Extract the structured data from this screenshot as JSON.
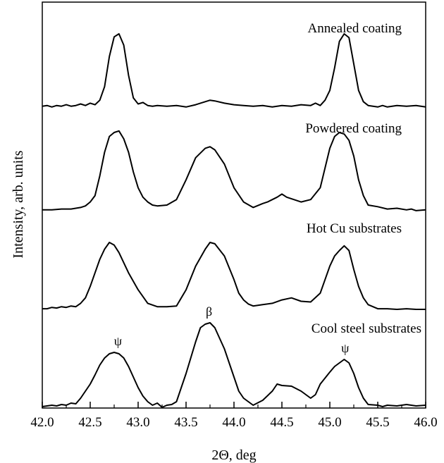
{
  "chart_data": {
    "type": "line",
    "xlabel": "2Θ, deg",
    "ylabel": "Intensity, arb. units",
    "xlim": [
      42.0,
      46.0
    ],
    "x_ticks": [
      "42.0",
      "42.5",
      "43.0",
      "43.5",
      "44.0",
      "44.5",
      "45.0",
      "45.5",
      "46.0"
    ],
    "grid": false,
    "line_color": "#000000",
    "series": [
      {
        "name": "Annealed coating",
        "points": [
          [
            42.0,
            0.04
          ],
          [
            42.05,
            0.05
          ],
          [
            42.1,
            0.03
          ],
          [
            42.15,
            0.05
          ],
          [
            42.2,
            0.04
          ],
          [
            42.25,
            0.06
          ],
          [
            42.3,
            0.04
          ],
          [
            42.35,
            0.05
          ],
          [
            42.4,
            0.07
          ],
          [
            42.45,
            0.05
          ],
          [
            42.5,
            0.08
          ],
          [
            42.55,
            0.06
          ],
          [
            42.6,
            0.12
          ],
          [
            42.65,
            0.3
          ],
          [
            42.7,
            0.7
          ],
          [
            42.75,
            0.96
          ],
          [
            42.8,
            1.0
          ],
          [
            42.85,
            0.85
          ],
          [
            42.9,
            0.45
          ],
          [
            42.95,
            0.15
          ],
          [
            43.0,
            0.07
          ],
          [
            43.05,
            0.09
          ],
          [
            43.1,
            0.05
          ],
          [
            43.15,
            0.04
          ],
          [
            43.2,
            0.05
          ],
          [
            43.3,
            0.04
          ],
          [
            43.4,
            0.05
          ],
          [
            43.5,
            0.03
          ],
          [
            43.6,
            0.06
          ],
          [
            43.7,
            0.1
          ],
          [
            43.75,
            0.12
          ],
          [
            43.8,
            0.11
          ],
          [
            43.9,
            0.08
          ],
          [
            44.0,
            0.06
          ],
          [
            44.1,
            0.05
          ],
          [
            44.2,
            0.04
          ],
          [
            44.3,
            0.05
          ],
          [
            44.4,
            0.03
          ],
          [
            44.5,
            0.05
          ],
          [
            44.6,
            0.04
          ],
          [
            44.7,
            0.06
          ],
          [
            44.8,
            0.05
          ],
          [
            44.85,
            0.08
          ],
          [
            44.9,
            0.05
          ],
          [
            44.95,
            0.12
          ],
          [
            45.0,
            0.25
          ],
          [
            45.05,
            0.55
          ],
          [
            45.1,
            0.9
          ],
          [
            45.15,
            1.0
          ],
          [
            45.2,
            0.95
          ],
          [
            45.25,
            0.6
          ],
          [
            45.3,
            0.25
          ],
          [
            45.35,
            0.1
          ],
          [
            45.4,
            0.05
          ],
          [
            45.5,
            0.03
          ],
          [
            45.55,
            0.05
          ],
          [
            45.6,
            0.03
          ],
          [
            45.7,
            0.05
          ],
          [
            45.8,
            0.04
          ],
          [
            45.9,
            0.05
          ],
          [
            46.0,
            0.03
          ]
        ]
      },
      {
        "name": "Powdered coating",
        "points": [
          [
            42.0,
            0.02
          ],
          [
            42.1,
            0.02
          ],
          [
            42.2,
            0.03
          ],
          [
            42.3,
            0.03
          ],
          [
            42.4,
            0.05
          ],
          [
            42.45,
            0.07
          ],
          [
            42.5,
            0.12
          ],
          [
            42.55,
            0.2
          ],
          [
            42.6,
            0.45
          ],
          [
            42.65,
            0.75
          ],
          [
            42.7,
            0.95
          ],
          [
            42.75,
            1.0
          ],
          [
            42.8,
            1.02
          ],
          [
            42.85,
            0.92
          ],
          [
            42.9,
            0.75
          ],
          [
            42.95,
            0.5
          ],
          [
            43.0,
            0.3
          ],
          [
            43.05,
            0.18
          ],
          [
            43.1,
            0.12
          ],
          [
            43.15,
            0.08
          ],
          [
            43.2,
            0.07
          ],
          [
            43.3,
            0.08
          ],
          [
            43.4,
            0.15
          ],
          [
            43.5,
            0.4
          ],
          [
            43.6,
            0.68
          ],
          [
            43.7,
            0.8
          ],
          [
            43.75,
            0.82
          ],
          [
            43.8,
            0.78
          ],
          [
            43.9,
            0.6
          ],
          [
            44.0,
            0.3
          ],
          [
            44.1,
            0.12
          ],
          [
            44.2,
            0.05
          ],
          [
            44.3,
            0.1
          ],
          [
            44.35,
            0.12
          ],
          [
            44.4,
            0.15
          ],
          [
            44.45,
            0.18
          ],
          [
            44.5,
            0.22
          ],
          [
            44.55,
            0.18
          ],
          [
            44.6,
            0.16
          ],
          [
            44.7,
            0.12
          ],
          [
            44.8,
            0.15
          ],
          [
            44.9,
            0.3
          ],
          [
            44.95,
            0.55
          ],
          [
            45.0,
            0.8
          ],
          [
            45.05,
            0.95
          ],
          [
            45.1,
            1.0
          ],
          [
            45.15,
            0.98
          ],
          [
            45.2,
            0.9
          ],
          [
            45.25,
            0.7
          ],
          [
            45.3,
            0.4
          ],
          [
            45.35,
            0.2
          ],
          [
            45.4,
            0.08
          ],
          [
            45.5,
            0.06
          ],
          [
            45.6,
            0.03
          ],
          [
            45.7,
            0.04
          ],
          [
            45.8,
            0.02
          ],
          [
            45.85,
            0.03
          ],
          [
            45.9,
            0.01
          ],
          [
            46.0,
            0.02
          ]
        ]
      },
      {
        "name": "Hot Cu substrates",
        "points": [
          [
            42.0,
            0.02
          ],
          [
            42.05,
            0.02
          ],
          [
            42.1,
            0.04
          ],
          [
            42.15,
            0.03
          ],
          [
            42.2,
            0.05
          ],
          [
            42.25,
            0.04
          ],
          [
            42.3,
            0.06
          ],
          [
            42.35,
            0.05
          ],
          [
            42.4,
            0.1
          ],
          [
            42.45,
            0.18
          ],
          [
            42.5,
            0.35
          ],
          [
            42.55,
            0.55
          ],
          [
            42.6,
            0.75
          ],
          [
            42.65,
            0.9
          ],
          [
            42.7,
            1.0
          ],
          [
            42.75,
            0.96
          ],
          [
            42.8,
            0.85
          ],
          [
            42.9,
            0.55
          ],
          [
            43.0,
            0.3
          ],
          [
            43.1,
            0.1
          ],
          [
            43.2,
            0.05
          ],
          [
            43.3,
            0.05
          ],
          [
            43.4,
            0.06
          ],
          [
            43.5,
            0.3
          ],
          [
            43.6,
            0.65
          ],
          [
            43.7,
            0.9
          ],
          [
            43.75,
            1.0
          ],
          [
            43.8,
            0.98
          ],
          [
            43.9,
            0.8
          ],
          [
            44.0,
            0.45
          ],
          [
            44.05,
            0.25
          ],
          [
            44.1,
            0.15
          ],
          [
            44.15,
            0.09
          ],
          [
            44.2,
            0.06
          ],
          [
            44.3,
            0.08
          ],
          [
            44.4,
            0.1
          ],
          [
            44.5,
            0.15
          ],
          [
            44.6,
            0.18
          ],
          [
            44.7,
            0.13
          ],
          [
            44.8,
            0.12
          ],
          [
            44.9,
            0.25
          ],
          [
            44.95,
            0.45
          ],
          [
            45.0,
            0.65
          ],
          [
            45.05,
            0.8
          ],
          [
            45.1,
            0.88
          ],
          [
            45.15,
            0.95
          ],
          [
            45.2,
            0.88
          ],
          [
            45.25,
            0.6
          ],
          [
            45.3,
            0.35
          ],
          [
            45.35,
            0.18
          ],
          [
            45.4,
            0.08
          ],
          [
            45.45,
            0.05
          ],
          [
            45.5,
            0.02
          ],
          [
            45.6,
            0.02
          ],
          [
            45.7,
            0.01
          ],
          [
            45.8,
            0.02
          ],
          [
            45.9,
            0.01
          ],
          [
            46.0,
            0.01
          ]
        ]
      },
      {
        "name": "Cool steel substrates",
        "points": [
          [
            42.0,
            0.03
          ],
          [
            42.05,
            0.04
          ],
          [
            42.1,
            0.05
          ],
          [
            42.15,
            0.04
          ],
          [
            42.2,
            0.06
          ],
          [
            42.25,
            0.05
          ],
          [
            42.3,
            0.08
          ],
          [
            42.35,
            0.07
          ],
          [
            42.4,
            0.15
          ],
          [
            42.5,
            0.35
          ],
          [
            42.55,
            0.48
          ],
          [
            42.6,
            0.62
          ],
          [
            42.65,
            0.72
          ],
          [
            42.7,
            0.78
          ],
          [
            42.75,
            0.8
          ],
          [
            42.8,
            0.78
          ],
          [
            42.85,
            0.72
          ],
          [
            42.9,
            0.6
          ],
          [
            42.95,
            0.45
          ],
          [
            43.0,
            0.3
          ],
          [
            43.05,
            0.18
          ],
          [
            43.1,
            0.1
          ],
          [
            43.15,
            0.05
          ],
          [
            43.2,
            0.08
          ],
          [
            43.25,
            0.02
          ],
          [
            43.3,
            0.05
          ],
          [
            43.35,
            0.06
          ],
          [
            43.4,
            0.1
          ],
          [
            43.5,
            0.5
          ],
          [
            43.6,
            0.95
          ],
          [
            43.65,
            1.15
          ],
          [
            43.7,
            1.2
          ],
          [
            43.75,
            1.22
          ],
          [
            43.8,
            1.15
          ],
          [
            43.85,
            1.0
          ],
          [
            43.9,
            0.85
          ],
          [
            43.95,
            0.65
          ],
          [
            44.0,
            0.45
          ],
          [
            44.05,
            0.25
          ],
          [
            44.1,
            0.15
          ],
          [
            44.15,
            0.1
          ],
          [
            44.2,
            0.05
          ],
          [
            44.3,
            0.12
          ],
          [
            44.4,
            0.25
          ],
          [
            44.45,
            0.35
          ],
          [
            44.5,
            0.33
          ],
          [
            44.6,
            0.32
          ],
          [
            44.7,
            0.25
          ],
          [
            44.8,
            0.15
          ],
          [
            44.85,
            0.2
          ],
          [
            44.9,
            0.35
          ],
          [
            45.0,
            0.52
          ],
          [
            45.05,
            0.6
          ],
          [
            45.1,
            0.65
          ],
          [
            45.15,
            0.7
          ],
          [
            45.2,
            0.65
          ],
          [
            45.25,
            0.5
          ],
          [
            45.3,
            0.3
          ],
          [
            45.35,
            0.15
          ],
          [
            45.4,
            0.06
          ],
          [
            45.5,
            0.05
          ],
          [
            45.55,
            0.03
          ],
          [
            45.6,
            0.05
          ],
          [
            45.7,
            0.04
          ],
          [
            45.8,
            0.06
          ],
          [
            45.9,
            0.04
          ],
          [
            46.0,
            0.05
          ]
        ]
      }
    ],
    "annotations": [
      {
        "text": "ψ",
        "x": 42.79,
        "series": "Cool steel substrates"
      },
      {
        "text": "β",
        "x": 43.74,
        "series": "Cool steel substrates"
      },
      {
        "text": "ψ",
        "x": 45.16,
        "series": "Cool steel substrates"
      }
    ]
  }
}
